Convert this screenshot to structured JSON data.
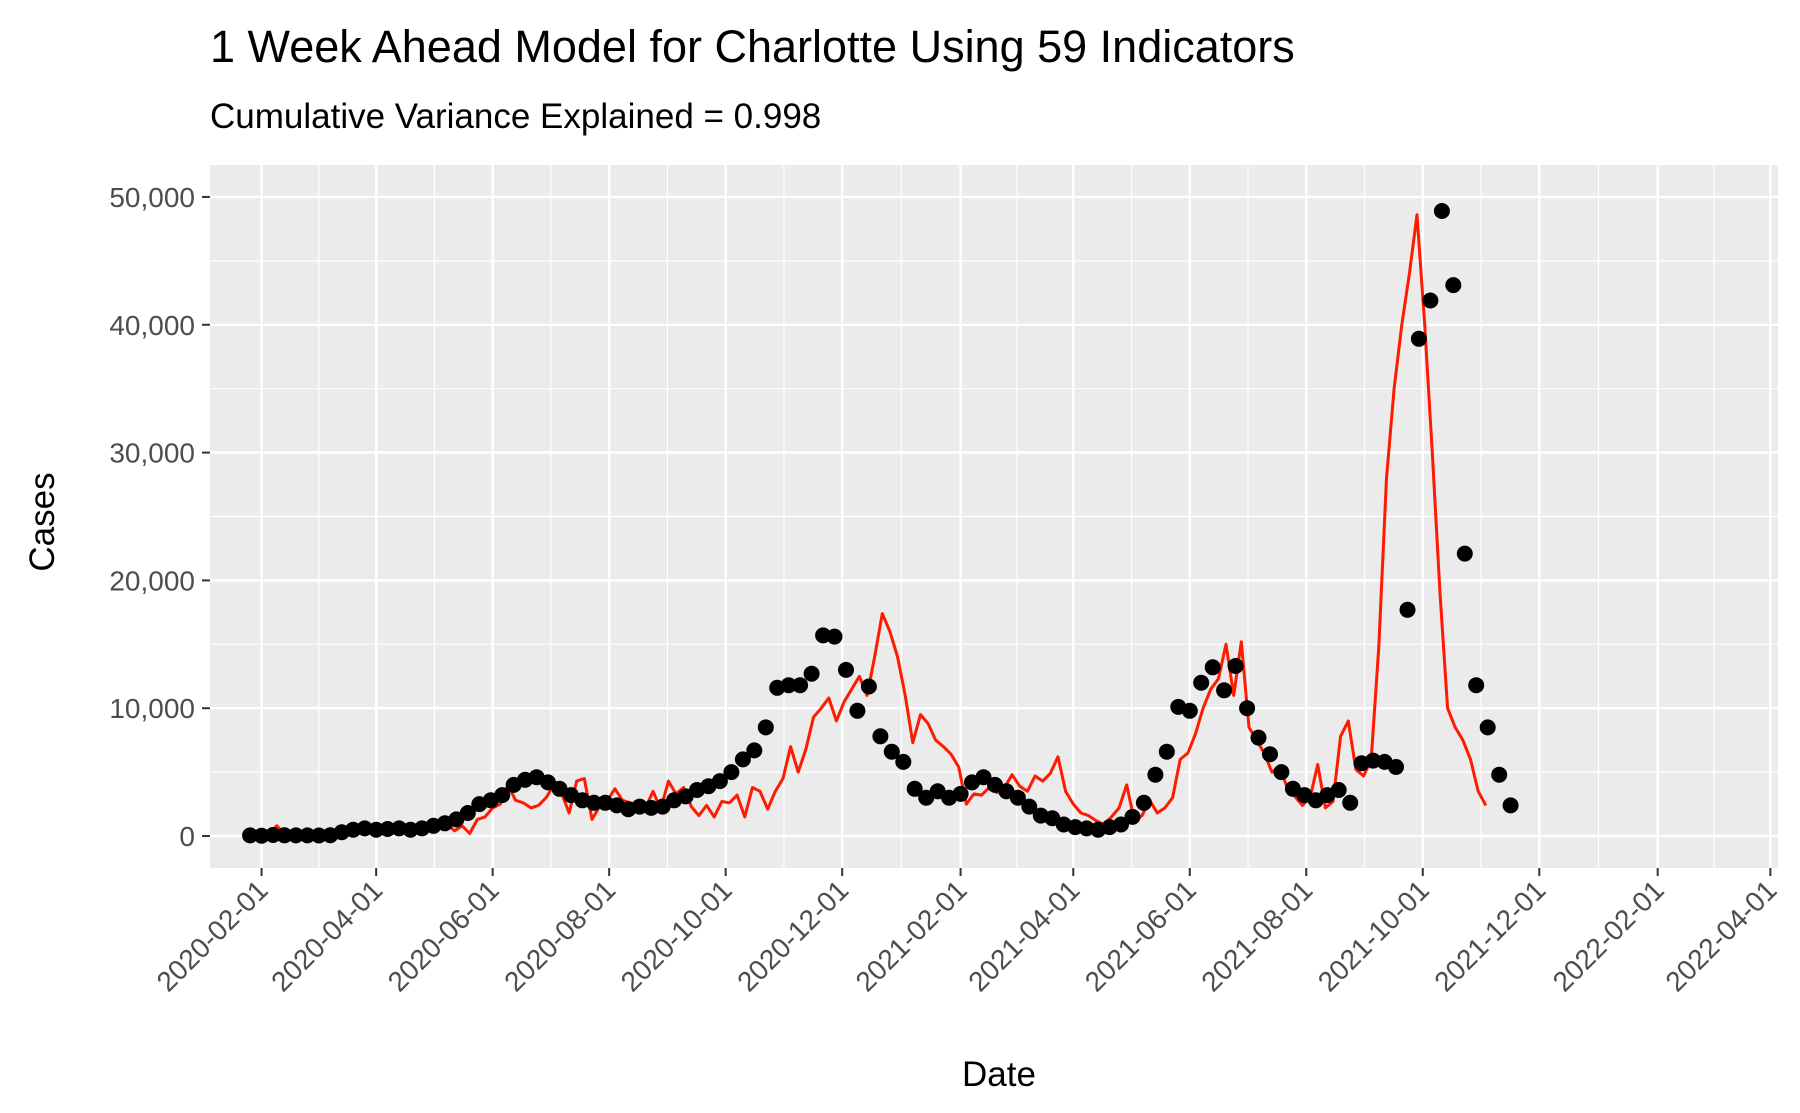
{
  "chart_data": {
    "type": "line",
    "title": "1 Week Ahead Model for Charlotte Using 59 Indicators",
    "subtitle": "Cumulative Variance Explained = 0.998",
    "xlabel": "Date",
    "ylabel": "Cases",
    "x_axis_type": "date",
    "xlim": [
      "2020-01-05",
      "2022-04-05"
    ],
    "ylim": [
      -2500,
      52500
    ],
    "x_ticks": [
      "2020-02-01",
      "2020-04-01",
      "2020-06-01",
      "2020-08-01",
      "2020-10-01",
      "2020-12-01",
      "2021-02-01",
      "2021-04-01",
      "2021-06-01",
      "2021-08-01",
      "2021-10-01",
      "2021-12-01",
      "2022-02-01",
      "2022-04-01"
    ],
    "y_ticks": [
      0,
      10000,
      20000,
      30000,
      40000,
      50000
    ],
    "y_tick_labels": [
      "0",
      "10,000",
      "20,000",
      "30,000",
      "40,000",
      "50,000"
    ],
    "grid": true,
    "background": "#ebebeb",
    "series": [
      {
        "style": "line",
        "color": "#ff1a00",
        "points": [
          [
            "2020-01-28",
            0
          ],
          [
            "2020-02-01",
            50
          ],
          [
            "2020-02-05",
            200
          ],
          [
            "2020-02-09",
            800
          ],
          [
            "2020-02-13",
            150
          ],
          [
            "2020-02-17",
            250
          ],
          [
            "2020-02-21",
            100
          ],
          [
            "2020-02-25",
            200
          ],
          [
            "2020-03-01",
            150
          ],
          [
            "2020-03-05",
            100
          ],
          [
            "2020-03-09",
            150
          ],
          [
            "2020-03-13",
            200
          ],
          [
            "2020-03-17",
            300
          ],
          [
            "2020-03-21",
            500
          ],
          [
            "2020-03-25",
            700
          ],
          [
            "2020-03-29",
            600
          ],
          [
            "2020-04-02",
            500
          ],
          [
            "2020-04-06",
            700
          ],
          [
            "2020-04-10",
            500
          ],
          [
            "2020-04-14",
            400
          ],
          [
            "2020-04-18",
            600
          ],
          [
            "2020-04-22",
            500
          ],
          [
            "2020-04-26",
            700
          ],
          [
            "2020-04-30",
            400
          ],
          [
            "2020-05-04",
            900
          ],
          [
            "2020-05-08",
            1000
          ],
          [
            "2020-05-12",
            400
          ],
          [
            "2020-05-16",
            800
          ],
          [
            "2020-05-20",
            200
          ],
          [
            "2020-05-24",
            1300
          ],
          [
            "2020-05-28",
            1500
          ],
          [
            "2020-06-01",
            2200
          ],
          [
            "2020-06-05",
            2500
          ],
          [
            "2020-06-09",
            4000
          ],
          [
            "2020-06-13",
            2800
          ],
          [
            "2020-06-17",
            2600
          ],
          [
            "2020-06-21",
            2200
          ],
          [
            "2020-06-25",
            2400
          ],
          [
            "2020-06-29",
            3000
          ],
          [
            "2020-07-03",
            4000
          ],
          [
            "2020-07-07",
            3400
          ],
          [
            "2020-07-11",
            1800
          ],
          [
            "2020-07-15",
            4300
          ],
          [
            "2020-07-19",
            4500
          ],
          [
            "2020-07-23",
            1300
          ],
          [
            "2020-07-27",
            2300
          ],
          [
            "2020-07-31",
            2800
          ],
          [
            "2020-08-04",
            3700
          ],
          [
            "2020-08-08",
            2800
          ],
          [
            "2020-08-12",
            2600
          ],
          [
            "2020-08-16",
            2500
          ],
          [
            "2020-08-20",
            2200
          ],
          [
            "2020-08-24",
            3500
          ],
          [
            "2020-08-28",
            2100
          ],
          [
            "2020-09-01",
            4300
          ],
          [
            "2020-09-05",
            3300
          ],
          [
            "2020-09-09",
            3800
          ],
          [
            "2020-09-13",
            2300
          ],
          [
            "2020-09-17",
            1600
          ],
          [
            "2020-09-21",
            2400
          ],
          [
            "2020-09-25",
            1500
          ],
          [
            "2020-09-29",
            2700
          ],
          [
            "2020-10-03",
            2600
          ],
          [
            "2020-10-07",
            3200
          ],
          [
            "2020-10-11",
            1500
          ],
          [
            "2020-10-15",
            3800
          ],
          [
            "2020-10-19",
            3500
          ],
          [
            "2020-10-23",
            2100
          ],
          [
            "2020-10-27",
            3500
          ],
          [
            "2020-10-31",
            4500
          ],
          [
            "2020-11-04",
            7000
          ],
          [
            "2020-11-08",
            5000
          ],
          [
            "2020-11-12",
            6800
          ],
          [
            "2020-11-16",
            9300
          ],
          [
            "2020-11-20",
            10000
          ],
          [
            "2020-11-24",
            10800
          ],
          [
            "2020-11-28",
            9000
          ],
          [
            "2020-12-02",
            10500
          ],
          [
            "2020-12-06",
            11500
          ],
          [
            "2020-12-10",
            12500
          ],
          [
            "2020-12-14",
            11000
          ],
          [
            "2020-12-18",
            14000
          ],
          [
            "2020-12-22",
            17400
          ],
          [
            "2020-12-26",
            16000
          ],
          [
            "2020-12-30",
            14000
          ],
          [
            "2021-01-03",
            11000
          ],
          [
            "2021-01-07",
            7300
          ],
          [
            "2021-01-11",
            9500
          ],
          [
            "2021-01-15",
            8800
          ],
          [
            "2021-01-19",
            7500
          ],
          [
            "2021-01-23",
            7000
          ],
          [
            "2021-01-27",
            6400
          ],
          [
            "2021-01-31",
            5400
          ],
          [
            "2021-02-04",
            2500
          ],
          [
            "2021-02-08",
            3300
          ],
          [
            "2021-02-12",
            3200
          ],
          [
            "2021-02-16",
            3800
          ],
          [
            "2021-02-20",
            3400
          ],
          [
            "2021-02-24",
            3800
          ],
          [
            "2021-02-28",
            4800
          ],
          [
            "2021-03-04",
            3900
          ],
          [
            "2021-03-08",
            3500
          ],
          [
            "2021-03-12",
            4700
          ],
          [
            "2021-03-16",
            4300
          ],
          [
            "2021-03-20",
            4900
          ],
          [
            "2021-03-24",
            6200
          ],
          [
            "2021-03-28",
            3500
          ],
          [
            "2021-04-01",
            2500
          ],
          [
            "2021-04-05",
            1800
          ],
          [
            "2021-04-09",
            1600
          ],
          [
            "2021-04-13",
            1200
          ],
          [
            "2021-04-17",
            900
          ],
          [
            "2021-04-21",
            1500
          ],
          [
            "2021-04-25",
            2200
          ],
          [
            "2021-04-29",
            4000
          ],
          [
            "2021-05-03",
            1200
          ],
          [
            "2021-05-07",
            1600
          ],
          [
            "2021-05-11",
            2800
          ],
          [
            "2021-05-15",
            1800
          ],
          [
            "2021-05-19",
            2200
          ],
          [
            "2021-05-23",
            3000
          ],
          [
            "2021-05-27",
            6000
          ],
          [
            "2021-05-31",
            6500
          ],
          [
            "2021-06-04",
            8000
          ],
          [
            "2021-06-08",
            10000
          ],
          [
            "2021-06-12",
            11500
          ],
          [
            "2021-06-16",
            12300
          ],
          [
            "2021-06-20",
            15000
          ],
          [
            "2021-06-24",
            11000
          ],
          [
            "2021-06-28",
            15200
          ],
          [
            "2021-07-02",
            8500
          ],
          [
            "2021-07-06",
            7500
          ],
          [
            "2021-07-10",
            6500
          ],
          [
            "2021-07-14",
            5000
          ],
          [
            "2021-07-18",
            5400
          ],
          [
            "2021-07-22",
            3800
          ],
          [
            "2021-07-26",
            3100
          ],
          [
            "2021-07-30",
            2400
          ],
          [
            "2021-08-03",
            3000
          ],
          [
            "2021-08-07",
            5600
          ],
          [
            "2021-08-11",
            2200
          ],
          [
            "2021-08-15",
            2700
          ],
          [
            "2021-08-19",
            7800
          ],
          [
            "2021-08-23",
            9000
          ],
          [
            "2021-08-27",
            5200
          ],
          [
            "2021-08-31",
            4700
          ],
          [
            "2021-09-04",
            6000
          ],
          [
            "2021-09-08",
            14800
          ],
          [
            "2021-09-12",
            28000
          ],
          [
            "2021-09-16",
            35000
          ],
          [
            "2021-09-20",
            40000
          ],
          [
            "2021-09-24",
            44000
          ],
          [
            "2021-09-28",
            48600
          ],
          [
            "2021-10-02",
            40000
          ],
          [
            "2021-10-06",
            30000
          ],
          [
            "2021-10-10",
            19000
          ],
          [
            "2021-10-14",
            10000
          ],
          [
            "2021-10-18",
            8500
          ],
          [
            "2021-10-22",
            7500
          ],
          [
            "2021-10-26",
            6000
          ],
          [
            "2021-10-30",
            3500
          ],
          [
            "2021-11-03",
            2400
          ]
        ]
      },
      {
        "style": "points",
        "color": "#000000",
        "points": [
          [
            "2020-01-26",
            50
          ],
          [
            "2020-02-01",
            30
          ],
          [
            "2020-02-07",
            80
          ],
          [
            "2020-02-13",
            60
          ],
          [
            "2020-02-19",
            50
          ],
          [
            "2020-02-25",
            50
          ],
          [
            "2020-03-02",
            40
          ],
          [
            "2020-03-08",
            70
          ],
          [
            "2020-03-14",
            300
          ],
          [
            "2020-03-20",
            500
          ],
          [
            "2020-03-26",
            600
          ],
          [
            "2020-04-01",
            500
          ],
          [
            "2020-04-07",
            550
          ],
          [
            "2020-04-13",
            600
          ],
          [
            "2020-04-19",
            500
          ],
          [
            "2020-04-25",
            600
          ],
          [
            "2020-05-01",
            800
          ],
          [
            "2020-05-07",
            1000
          ],
          [
            "2020-05-13",
            1300
          ],
          [
            "2020-05-19",
            1800
          ],
          [
            "2020-05-25",
            2500
          ],
          [
            "2020-05-31",
            2800
          ],
          [
            "2020-06-06",
            3200
          ],
          [
            "2020-06-12",
            4000
          ],
          [
            "2020-06-18",
            4400
          ],
          [
            "2020-06-24",
            4600
          ],
          [
            "2020-06-30",
            4200
          ],
          [
            "2020-07-06",
            3700
          ],
          [
            "2020-07-12",
            3200
          ],
          [
            "2020-07-18",
            2800
          ],
          [
            "2020-07-24",
            2600
          ],
          [
            "2020-07-30",
            2600
          ],
          [
            "2020-08-05",
            2400
          ],
          [
            "2020-08-11",
            2100
          ],
          [
            "2020-08-17",
            2300
          ],
          [
            "2020-08-23",
            2200
          ],
          [
            "2020-08-29",
            2300
          ],
          [
            "2020-09-04",
            2800
          ],
          [
            "2020-09-10",
            3100
          ],
          [
            "2020-09-16",
            3600
          ],
          [
            "2020-09-22",
            3900
          ],
          [
            "2020-09-28",
            4300
          ],
          [
            "2020-10-04",
            5000
          ],
          [
            "2020-10-10",
            6000
          ],
          [
            "2020-10-16",
            6700
          ],
          [
            "2020-10-22",
            8500
          ],
          [
            "2020-10-28",
            11600
          ],
          [
            "2020-11-03",
            11800
          ],
          [
            "2020-11-09",
            11800
          ],
          [
            "2020-11-15",
            12700
          ],
          [
            "2020-11-21",
            15700
          ],
          [
            "2020-11-27",
            15600
          ],
          [
            "2020-12-03",
            13000
          ],
          [
            "2020-12-09",
            9800
          ],
          [
            "2020-12-15",
            11700
          ],
          [
            "2020-12-21",
            7800
          ],
          [
            "2020-12-27",
            6600
          ],
          [
            "2021-01-02",
            5800
          ],
          [
            "2021-01-08",
            3700
          ],
          [
            "2021-01-14",
            3000
          ],
          [
            "2021-01-20",
            3500
          ],
          [
            "2021-01-26",
            3000
          ],
          [
            "2021-02-01",
            3300
          ],
          [
            "2021-02-07",
            4200
          ],
          [
            "2021-02-13",
            4600
          ],
          [
            "2021-02-19",
            4000
          ],
          [
            "2021-02-25",
            3500
          ],
          [
            "2021-03-03",
            3000
          ],
          [
            "2021-03-09",
            2300
          ],
          [
            "2021-03-15",
            1600
          ],
          [
            "2021-03-21",
            1400
          ],
          [
            "2021-03-27",
            900
          ],
          [
            "2021-04-02",
            700
          ],
          [
            "2021-04-08",
            600
          ],
          [
            "2021-04-14",
            500
          ],
          [
            "2021-04-20",
            700
          ],
          [
            "2021-04-26",
            900
          ],
          [
            "2021-05-02",
            1500
          ],
          [
            "2021-05-08",
            2600
          ],
          [
            "2021-05-14",
            4800
          ],
          [
            "2021-05-20",
            6600
          ],
          [
            "2021-05-26",
            10100
          ],
          [
            "2021-06-01",
            9800
          ],
          [
            "2021-06-07",
            12000
          ],
          [
            "2021-06-13",
            13200
          ],
          [
            "2021-06-19",
            11400
          ],
          [
            "2021-06-25",
            13300
          ],
          [
            "2021-07-01",
            10000
          ],
          [
            "2021-07-07",
            7700
          ],
          [
            "2021-07-13",
            6400
          ],
          [
            "2021-07-19",
            5000
          ],
          [
            "2021-07-25",
            3700
          ],
          [
            "2021-07-31",
            3200
          ],
          [
            "2021-08-06",
            2800
          ],
          [
            "2021-08-12",
            3200
          ],
          [
            "2021-08-18",
            3600
          ],
          [
            "2021-08-24",
            2600
          ],
          [
            "2021-08-30",
            5700
          ],
          [
            "2021-09-05",
            5900
          ],
          [
            "2021-09-11",
            5800
          ],
          [
            "2021-09-17",
            5400
          ],
          [
            "2021-09-23",
            17700
          ],
          [
            "2021-09-29",
            38900
          ],
          [
            "2021-10-05",
            41900
          ],
          [
            "2021-10-11",
            48900
          ],
          [
            "2021-10-17",
            43100
          ],
          [
            "2021-10-23",
            22100
          ],
          [
            "2021-10-29",
            11800
          ],
          [
            "2021-11-04",
            8500
          ],
          [
            "2021-11-10",
            4800
          ],
          [
            "2021-11-16",
            2400
          ]
        ]
      }
    ]
  }
}
